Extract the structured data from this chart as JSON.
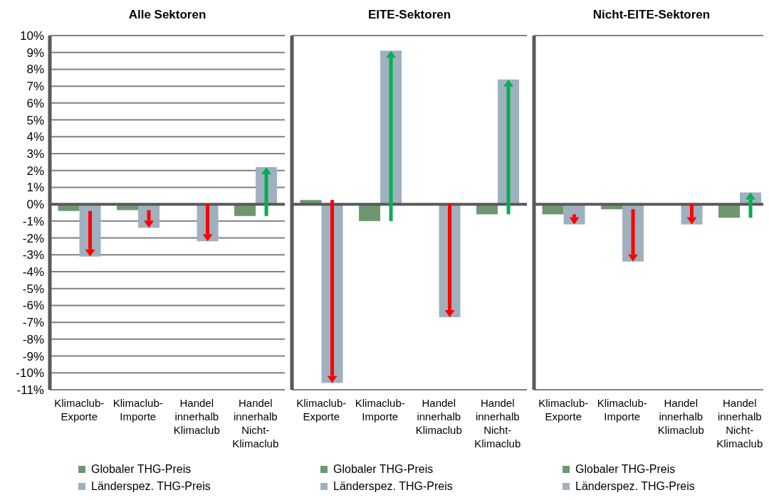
{
  "chart_data": [
    {
      "type": "bar",
      "title": "Alle Sektoren",
      "categories": [
        "Klimaclub-Exporte",
        "Klimaclub-Importe",
        "Handel innerhalb Klimaclub",
        "Handel innerhalb Nicht-Klimaclub"
      ],
      "series": [
        {
          "name": "Globaler THG-Preis",
          "color": "#6e9770",
          "values": [
            -0.4,
            -0.35,
            null,
            -0.7
          ]
        },
        {
          "name": "Länderspez. THG-Preis",
          "color": "#9fb1bf",
          "values": [
            -3.1,
            -1.4,
            -2.2,
            2.2
          ]
        }
      ],
      "ylim": [
        -11,
        10
      ],
      "yticks": [
        {
          "value": -11,
          "label": "-11%"
        },
        {
          "value": -10,
          "label": "-10%"
        },
        {
          "value": -9,
          "label": "-9%"
        },
        {
          "value": -8,
          "label": "-8%"
        },
        {
          "value": -7,
          "label": "-7%"
        },
        {
          "value": -6,
          "label": "-6%"
        },
        {
          "value": -5,
          "label": "-5%"
        },
        {
          "value": -4,
          "label": "-4%"
        },
        {
          "value": -3,
          "label": "-3%"
        },
        {
          "value": -2,
          "label": "-2%"
        },
        {
          "value": -1,
          "label": "-1%"
        },
        {
          "value": 0,
          "label": "0%"
        },
        {
          "value": 1,
          "label": "1%"
        },
        {
          "value": 2,
          "label": "2%"
        },
        {
          "value": 3,
          "label": "3%"
        },
        {
          "value": 4,
          "label": "4%"
        },
        {
          "value": 5,
          "label": "5%"
        },
        {
          "value": 6,
          "label": "6%"
        },
        {
          "value": 7,
          "label": "7%"
        },
        {
          "value": 8,
          "label": "8%"
        },
        {
          "value": 9,
          "label": "9%"
        },
        {
          "value": 10,
          "label": "10%"
        }
      ],
      "grid": "y",
      "legend": "bottom"
    },
    {
      "type": "bar",
      "title": "EITE-Sektoren",
      "categories": [
        "Klimaclub-Exporte",
        "Klimaclub-Importe",
        "Handel innerhalb Klimaclub",
        "Handel innerhalb Nicht-Klimaclub"
      ],
      "series": [
        {
          "name": "Globaler THG-Preis",
          "color": "#6e9770",
          "values": [
            0.25,
            -1.0,
            0.05,
            -0.6
          ]
        },
        {
          "name": "Länderspez. THG-Preis",
          "color": "#9fb1bf",
          "values": [
            -10.6,
            9.1,
            -6.7,
            7.4
          ]
        }
      ],
      "ylim": [
        -11,
        10
      ],
      "tick_labels": "x",
      "grid": "y",
      "legend": "bottom"
    },
    {
      "type": "bar",
      "title": "Nicht-EITE-Sektoren",
      "categories": [
        "Klimaclub-Exporte",
        "Klimaclub-Importe",
        "Handel innerhalb Klimaclub",
        "Handel innerhalb Nicht-Klimaclub"
      ],
      "series": [
        {
          "name": "Globaler THG-Preis",
          "color": "#6e9770",
          "values": [
            -0.6,
            -0.3,
            null,
            -0.8
          ]
        },
        {
          "name": "Länderspez. THG-Preis",
          "color": "#9fb1bf",
          "values": [
            -1.2,
            -3.4,
            -1.2,
            0.7
          ]
        }
      ],
      "ylim": [
        -11,
        10
      ],
      "tick_labels": "x",
      "grid": "y",
      "legend": "bottom"
    }
  ]
}
